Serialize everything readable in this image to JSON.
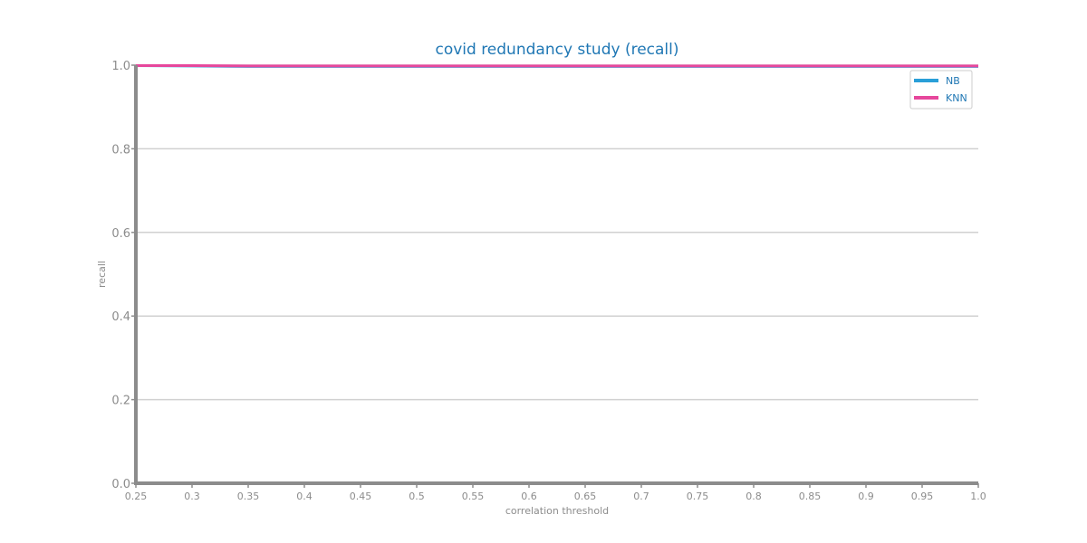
{
  "chart_data": {
    "type": "line",
    "title": "covid redundancy study (recall)",
    "xlabel": "correlation threshold",
    "ylabel": "recall",
    "xlim": [
      0.25,
      1.0
    ],
    "ylim": [
      0.0,
      1.0
    ],
    "x_ticks": [
      "0.25",
      "0.3",
      "0.35",
      "0.4",
      "0.45",
      "0.5",
      "0.55",
      "0.6",
      "0.65",
      "0.7",
      "0.75",
      "0.8",
      "0.85",
      "0.9",
      "0.95",
      "1.0"
    ],
    "y_ticks": [
      "0.0",
      "0.2",
      "0.4",
      "0.6",
      "0.8",
      "1.0"
    ],
    "grid": "horizontal",
    "legend_position": "top-right",
    "x": [
      0.25,
      0.3,
      0.35,
      0.4,
      0.45,
      0.5,
      0.55,
      0.6,
      0.65,
      0.7,
      0.75,
      0.8,
      0.85,
      0.9,
      0.95,
      1.0
    ],
    "series": [
      {
        "name": "NB",
        "color": "#2a9fd8",
        "values": [
          0.999,
          0.998,
          0.997,
          0.997,
          0.997,
          0.997,
          0.997,
          0.997,
          0.997,
          0.997,
          0.997,
          0.997,
          0.997,
          0.997,
          0.997,
          0.997
        ]
      },
      {
        "name": "KNN",
        "color": "#e6479c",
        "values": [
          0.999,
          0.999,
          0.998,
          0.998,
          0.998,
          0.998,
          0.998,
          0.998,
          0.998,
          0.998,
          0.998,
          0.998,
          0.998,
          0.998,
          0.998,
          0.998
        ]
      }
    ]
  }
}
